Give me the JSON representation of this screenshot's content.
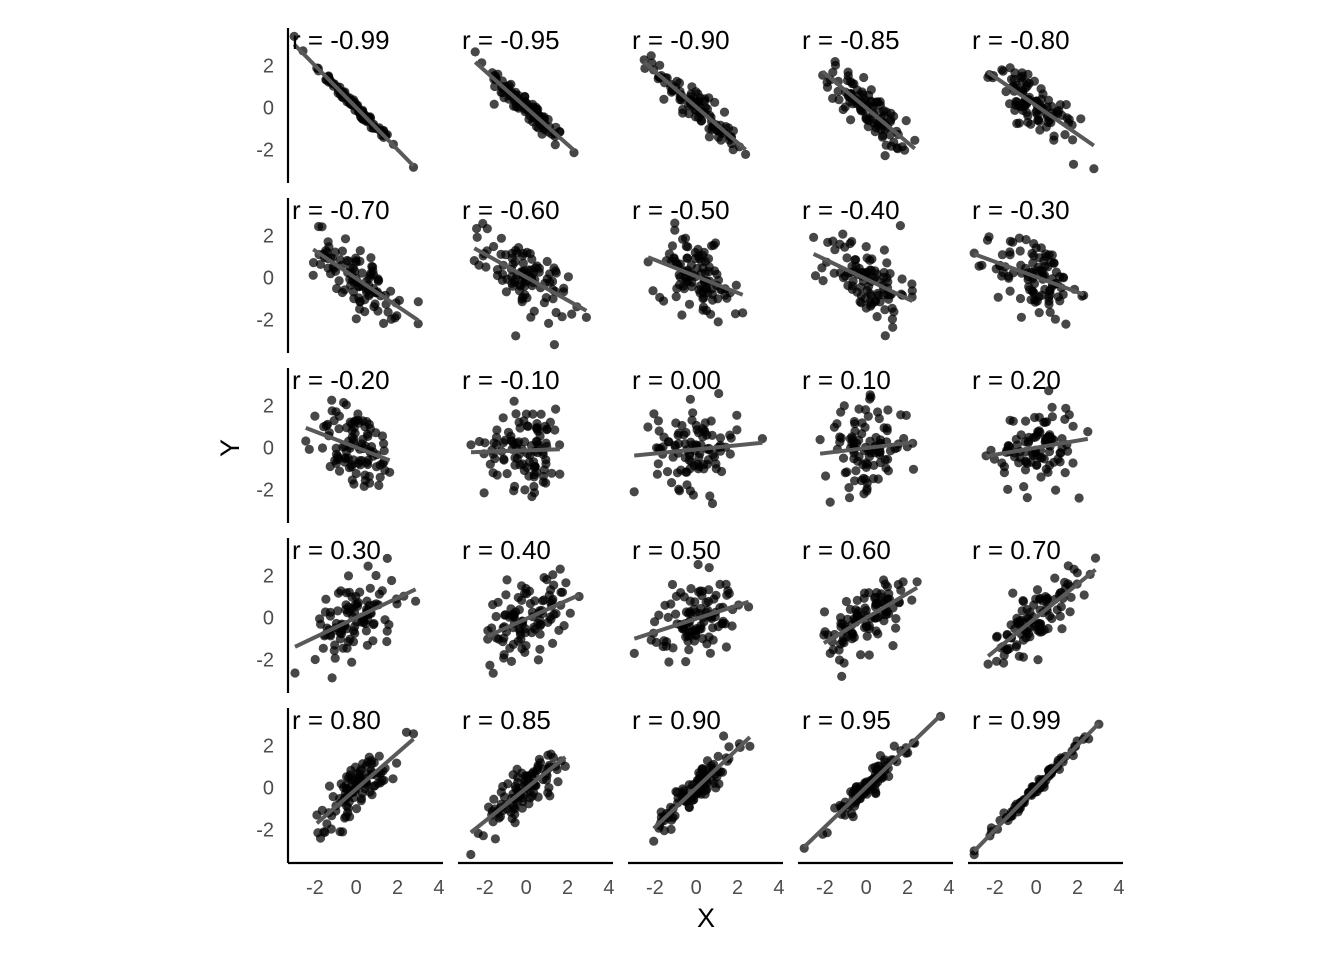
{
  "chart_data": {
    "type": "scatter",
    "layout": "facet-grid",
    "xlabel": "X",
    "ylabel": "Y",
    "x_ticks": [
      -2,
      0,
      2,
      4
    ],
    "y_ticks": [
      -2,
      0,
      2
    ],
    "xlim": [
      -3.3,
      4.2
    ],
    "ylim": [
      -3.6,
      3.8
    ],
    "grid": false,
    "legend": "none",
    "n_points_per_panel": 100,
    "panels": [
      {
        "label": "r = -0.99",
        "r": -0.99
      },
      {
        "label": "r = -0.95",
        "r": -0.95
      },
      {
        "label": "r = -0.90",
        "r": -0.9
      },
      {
        "label": "r = -0.85",
        "r": -0.85
      },
      {
        "label": "r = -0.80",
        "r": -0.8
      },
      {
        "label": "r = -0.70",
        "r": -0.7
      },
      {
        "label": "r = -0.60",
        "r": -0.6
      },
      {
        "label": "r = -0.50",
        "r": -0.5
      },
      {
        "label": "r = -0.40",
        "r": -0.4
      },
      {
        "label": "r = -0.30",
        "r": -0.3
      },
      {
        "label": "r = -0.20",
        "r": -0.2
      },
      {
        "label": "r = -0.10",
        "r": -0.1
      },
      {
        "label": "r = 0.00",
        "r": 0.0
      },
      {
        "label": "r = 0.10",
        "r": 0.1
      },
      {
        "label": "r = 0.20",
        "r": 0.2
      },
      {
        "label": "r = 0.30",
        "r": 0.3
      },
      {
        "label": "r = 0.40",
        "r": 0.4
      },
      {
        "label": "r = 0.50",
        "r": 0.5
      },
      {
        "label": "r = 0.60",
        "r": 0.6
      },
      {
        "label": "r = 0.70",
        "r": 0.7
      },
      {
        "label": "r = 0.80",
        "r": 0.8
      },
      {
        "label": "r = 0.85",
        "r": 0.85
      },
      {
        "label": "r = 0.90",
        "r": 0.9
      },
      {
        "label": "r = 0.95",
        "r": 0.95
      },
      {
        "label": "r = 0.99",
        "r": 0.99
      }
    ]
  }
}
